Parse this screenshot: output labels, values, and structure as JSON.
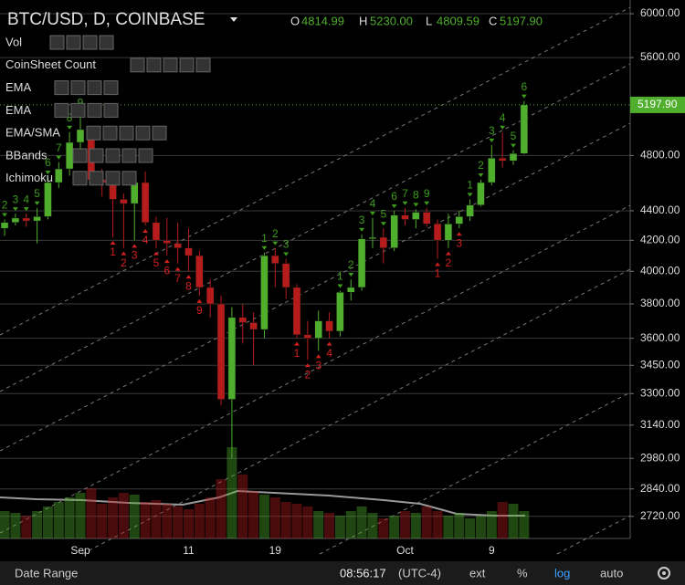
{
  "chart_data": {
    "type": "candlestick",
    "title": "BTC/USD, D, COINBASE",
    "categories": [
      null,
      null,
      null,
      null,
      null,
      null,
      null,
      "Sep",
      null,
      null,
      null,
      null,
      null,
      null,
      null,
      null,
      null,
      "11",
      null,
      null,
      null,
      null,
      null,
      null,
      null,
      "19",
      null,
      null,
      null,
      null,
      null,
      null,
      null,
      null,
      null,
      null,
      null,
      "Oct",
      null,
      null,
      null,
      null,
      null,
      null,
      null,
      "9",
      null,
      null,
      null
    ],
    "open": [
      4280,
      4320,
      4350,
      4330,
      4360,
      4600,
      4700,
      4900,
      5000,
      4620,
      4600,
      4480,
      4450,
      4600,
      4320,
      4200,
      4180,
      4150,
      4100,
      3900,
      3800,
      3270,
      3720,
      3690,
      3650,
      4100,
      4050,
      3900,
      3620,
      3600,
      3700,
      3640,
      3870,
      3900,
      4210,
      4220,
      4150,
      4370,
      4340,
      4390,
      4310,
      4200,
      4310,
      4360,
      4440,
      4600,
      4780,
      4760,
      4814.99
    ],
    "high": [
      4340,
      4380,
      4380,
      4420,
      4640,
      4750,
      4980,
      5100,
      5010,
      4700,
      4620,
      4520,
      4650,
      4680,
      4360,
      4350,
      4320,
      4280,
      4130,
      3950,
      3850,
      3780,
      3800,
      3750,
      4120,
      4150,
      4080,
      3920,
      3700,
      3760,
      3750,
      3880,
      3950,
      4240,
      4350,
      4280,
      4400,
      4420,
      4410,
      4420,
      4340,
      4380,
      4400,
      4480,
      4620,
      4880,
      4980,
      4840,
      5230
    ],
    "low": [
      4230,
      4300,
      4290,
      4180,
      4340,
      4560,
      4650,
      4850,
      4580,
      4500,
      4220,
      4150,
      4200,
      4300,
      4150,
      4100,
      4050,
      4000,
      3850,
      3720,
      3240,
      2980,
      3570,
      3450,
      3600,
      3900,
      3830,
      3600,
      3480,
      3530,
      3600,
      3610,
      3820,
      3880,
      4150,
      4050,
      4130,
      4300,
      4280,
      4290,
      4080,
      4150,
      4280,
      4330,
      4430,
      4580,
      4710,
      4730,
      4809.59
    ],
    "close": [
      4320,
      4350,
      4330,
      4360,
      4600,
      4700,
      4900,
      5000,
      4620,
      4600,
      4480,
      4450,
      4600,
      4320,
      4200,
      4180,
      4150,
      4100,
      3900,
      3800,
      3270,
      3720,
      3690,
      3650,
      4100,
      4050,
      3900,
      3620,
      3600,
      3700,
      3640,
      3870,
      3900,
      4210,
      4220,
      4150,
      4370,
      4340,
      4390,
      4310,
      4200,
      4310,
      4360,
      4440,
      4600,
      4780,
      4760,
      4815,
      5197.9
    ],
    "volume": [
      30,
      28,
      25,
      30,
      35,
      40,
      45,
      50,
      55,
      38,
      45,
      50,
      48,
      40,
      42,
      38,
      35,
      32,
      38,
      45,
      65,
      100,
      70,
      52,
      48,
      45,
      40,
      38,
      35,
      30,
      28,
      25,
      30,
      35,
      28,
      22,
      25,
      30,
      28,
      35,
      30,
      25,
      28,
      22,
      25,
      30,
      40,
      38,
      30
    ],
    "buy_setup": [
      2,
      3,
      4,
      5,
      6,
      7,
      8,
      9,
      null,
      null,
      null,
      null,
      null,
      null,
      null,
      null,
      null,
      null,
      null,
      null,
      null,
      null,
      null,
      null,
      1,
      2,
      3,
      null,
      null,
      null,
      null,
      1,
      2,
      3,
      4,
      5,
      6,
      7,
      8,
      9,
      null,
      null,
      null,
      1,
      2,
      3,
      4,
      5,
      6
    ],
    "sell_setup": [
      null,
      null,
      null,
      null,
      null,
      null,
      null,
      null,
      null,
      null,
      1,
      2,
      3,
      4,
      5,
      6,
      7,
      8,
      9,
      null,
      null,
      null,
      null,
      null,
      null,
      null,
      null,
      1,
      2,
      3,
      4,
      null,
      null,
      null,
      null,
      null,
      null,
      null,
      null,
      null,
      1,
      2,
      3,
      null,
      null,
      null,
      null,
      null,
      null
    ],
    "last_value_labels": {
      "open": "4814.99",
      "high": "5230.00",
      "low": "4809.59",
      "close": "5197.90"
    },
    "ylim": [
      2627,
      6131
    ],
    "log_scale": true,
    "grid": true,
    "yticks": [
      {
        "value": 2720,
        "label": "2720.00"
      },
      {
        "value": 2840,
        "label": "2840.00"
      },
      {
        "value": 2980,
        "label": "2980.00"
      },
      {
        "value": 3140,
        "label": "3140.00"
      },
      {
        "value": 3300,
        "label": "3300.00"
      },
      {
        "value": 3450,
        "label": "3450.00"
      },
      {
        "value": 3600,
        "label": "3600.00"
      },
      {
        "value": 3800,
        "label": "3800.00"
      },
      {
        "value": 4000,
        "label": "4000.00"
      },
      {
        "value": 4200,
        "label": "4200.00"
      },
      {
        "value": 4400,
        "label": "4400.00"
      },
      {
        "value": 4800,
        "label": "4800.00"
      },
      {
        "value": 5600,
        "label": "5600.00"
      },
      {
        "value": 6000,
        "label": "6000.00"
      }
    ],
    "up_color": "#4fae2c",
    "down_color": "#b71c1c",
    "buy_color": "#3c9e1c",
    "sell_color": "#d42020"
  },
  "ui": {
    "ohlc_letters": [
      "O",
      "H",
      "L",
      "C"
    ],
    "indicators": [
      "Vol",
      "CoinSheet Count",
      "EMA",
      "EMA",
      "EMA/SMA",
      "BBands",
      "Ichimoku"
    ],
    "footer": {
      "date_range": "Date Range",
      "time": "08:56:17",
      "zone": "(UTC-4)",
      "ext": "ext",
      "percent": "%",
      "log": "log",
      "auto": "auto"
    }
  }
}
